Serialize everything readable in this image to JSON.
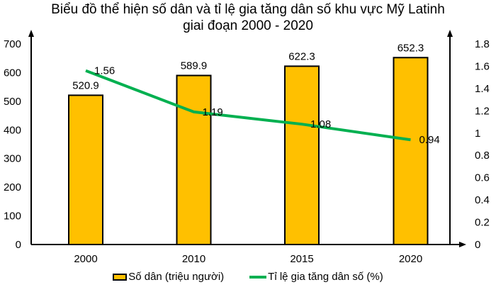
{
  "title": {
    "line1": "Biểu đồ thể hiện số dân và tỉ lệ gia tăng dân số khu vực Mỹ Latinh",
    "line2": "giai đoạn 2000 - 2020"
  },
  "legend": {
    "bar_label": "Số dân (triệu người)",
    "line_label": "Tỉ lệ gia tăng dân số (%)"
  },
  "colors": {
    "bar": "#FFC000",
    "line": "#00B050",
    "axis": "#000000"
  },
  "chart_data": {
    "type": "bar+line",
    "title": "Biểu đồ thể hiện số dân và tỉ lệ gia tăng dân số khu vực Mỹ Latinh giai đoạn 2000 - 2020",
    "categories": [
      "2000",
      "2010",
      "2015",
      "2020"
    ],
    "series": [
      {
        "name": "Số dân (triệu người)",
        "type": "bar",
        "axis": "left",
        "values": [
          520.9,
          589.9,
          622.3,
          652.3
        ],
        "labels": [
          "520.9",
          "589.9",
          "622.3",
          "652.3"
        ]
      },
      {
        "name": "Tỉ lệ gia tăng dân số (%)",
        "type": "line",
        "axis": "right",
        "values": [
          1.56,
          1.19,
          1.08,
          0.94
        ],
        "labels": [
          "1.56",
          "1.19",
          "1.08",
          "0.94"
        ]
      }
    ],
    "left_axis": {
      "ylim": [
        0,
        700
      ],
      "ticks": [
        "0",
        "100",
        "200",
        "300",
        "400",
        "500",
        "600",
        "700"
      ]
    },
    "right_axis": {
      "ylim": [
        0,
        1.8
      ],
      "ticks": [
        "0",
        "0.2",
        "0.4",
        "0.6",
        "0.8",
        "1",
        "1.2",
        "1.4",
        "1.6",
        "1.8"
      ]
    },
    "xlabel": "",
    "ylabel": "",
    "grid": false,
    "legend_position": "bottom"
  }
}
